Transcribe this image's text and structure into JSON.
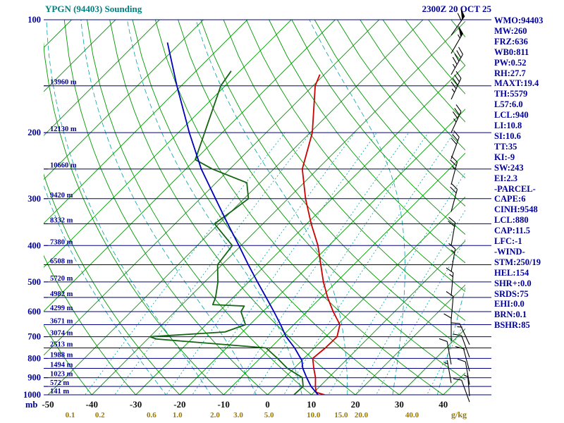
{
  "header": {
    "title": "YPGN (94403) Sounding",
    "datetime": "2300Z 20 OCT 25"
  },
  "stats": {
    "lines": [
      "WMO:94403",
      "MW:260",
      "FRZ:636",
      "WB0:811",
      "PW:0.52",
      "RH:27.7",
      "MAXT:19.4",
      "TH:5579",
      "L57:6.0",
      "LCL:940",
      "LI:10.8",
      "SI:10.6",
      "TT:35",
      "KI:-9",
      "SW:243",
      "EI:2.3",
      "-PARCEL-",
      "CAPE:6",
      "CINH:9548",
      "LCL:880",
      "CAP:11.5",
      "LFC:-1",
      "-WIND-",
      "STM:250/19",
      "HEL:154",
      "SHR+:0.0",
      "SRDS:75",
      "EHI:0.0",
      "BRN:0.1",
      "BSHR:85"
    ]
  },
  "chart_data": {
    "type": "line",
    "subtype": "skew-t-log-p-sounding",
    "title": "YPGN (94403) Sounding",
    "datetime": "2300Z 20 OCT 25",
    "pressure_unit": "mb",
    "mixing_unit": "g/kg",
    "pressure_ticks": [
      100,
      200,
      300,
      400,
      500,
      600,
      700,
      800,
      900,
      1000
    ],
    "temp_ticks": [
      -50,
      -40,
      -30,
      -20,
      -10,
      0,
      10,
      20,
      30,
      40
    ],
    "height_labels": [
      {
        "p": 150,
        "label": "13960 m"
      },
      {
        "p": 200,
        "label": "12130 m"
      },
      {
        "p": 250,
        "label": "10660 m"
      },
      {
        "p": 300,
        "label": "9420 m"
      },
      {
        "p": 350,
        "label": "8332 m"
      },
      {
        "p": 400,
        "label": "7380 m"
      },
      {
        "p": 450,
        "label": "6508 m"
      },
      {
        "p": 500,
        "label": "5720 m"
      },
      {
        "p": 550,
        "label": "4982 m"
      },
      {
        "p": 600,
        "label": "4299 m"
      },
      {
        "p": 650,
        "label": "3671 m"
      },
      {
        "p": 700,
        "label": "3074 m"
      },
      {
        "p": 750,
        "label": "2513 m"
      },
      {
        "p": 800,
        "label": "1988 m"
      },
      {
        "p": 850,
        "label": "1494 m"
      },
      {
        "p": 900,
        "label": "1023 m"
      },
      {
        "p": 950,
        "label": "572 m"
      },
      {
        "p": 1000,
        "label": "141 m"
      }
    ],
    "mixing_ratios": [
      {
        "w": 0.1,
        "label": "0.1"
      },
      {
        "w": 0.2,
        "label": "0.2"
      },
      {
        "w": 0.6,
        "label": "0.6"
      },
      {
        "w": 1,
        "label": "1.0"
      },
      {
        "w": 2,
        "label": "2.0"
      },
      {
        "w": 3,
        "label": "3.0"
      },
      {
        "w": 5,
        "label": "5.0"
      },
      {
        "w": 10,
        "label": "10.0"
      },
      {
        "w": 15,
        "label": "15.0"
      },
      {
        "w": 20,
        "label": "20.0"
      },
      {
        "w": 40,
        "label": "40.0"
      }
    ],
    "series": [
      {
        "name": "temperature",
        "color": "#cc0000",
        "points": [
          [
            1000,
            13
          ],
          [
            985,
            10.5
          ],
          [
            950,
            9
          ],
          [
            900,
            7
          ],
          [
            850,
            4.5
          ],
          [
            800,
            2
          ],
          [
            750,
            2.5
          ],
          [
            700,
            2.6
          ],
          [
            650,
            0.5
          ],
          [
            600,
            -4
          ],
          [
            550,
            -8.5
          ],
          [
            500,
            -13
          ],
          [
            450,
            -17.5
          ],
          [
            400,
            -22.5
          ],
          [
            350,
            -29
          ],
          [
            300,
            -36
          ],
          [
            250,
            -43.5
          ],
          [
            200,
            -49.5
          ],
          [
            150,
            -59.5
          ],
          [
            140,
            -61
          ]
        ]
      },
      {
        "name": "dewpoint",
        "color": "#146414",
        "points": [
          [
            1000,
            6
          ],
          [
            950,
            6.2
          ],
          [
            900,
            4
          ],
          [
            850,
            -1.5
          ],
          [
            800,
            -6
          ],
          [
            750,
            -11
          ],
          [
            710,
            -38
          ],
          [
            700,
            -40
          ],
          [
            680,
            -24
          ],
          [
            650,
            -21
          ],
          [
            600,
            -25
          ],
          [
            580,
            -25.5
          ],
          [
            575,
            -33
          ],
          [
            550,
            -34
          ],
          [
            500,
            -37
          ],
          [
            450,
            -41
          ],
          [
            400,
            -42
          ],
          [
            350,
            -51
          ],
          [
            325,
            -50
          ],
          [
            300,
            -49
          ],
          [
            272,
            -53
          ],
          [
            250,
            -64
          ],
          [
            236,
            -70
          ],
          [
            200,
            -74
          ],
          [
            150,
            -81
          ],
          [
            137,
            -82
          ]
        ]
      },
      {
        "name": "wetbulb",
        "color": "#0000bb",
        "points": [
          [
            1000,
            11.5
          ],
          [
            950,
            8
          ],
          [
            900,
            5
          ],
          [
            850,
            2
          ],
          [
            810,
            0
          ],
          [
            750,
            -4.5
          ],
          [
            700,
            -9
          ],
          [
            650,
            -13
          ],
          [
            600,
            -17.5
          ],
          [
            550,
            -22.5
          ],
          [
            500,
            -28
          ],
          [
            450,
            -34
          ],
          [
            400,
            -40.5
          ],
          [
            350,
            -48
          ],
          [
            300,
            -56.5
          ],
          [
            250,
            -66.5
          ],
          [
            200,
            -77.5
          ],
          [
            150,
            -91
          ],
          [
            115,
            -103
          ]
        ]
      }
    ],
    "winds": [
      {
        "p": 110,
        "spd": 60,
        "dir": 35,
        "col": 0
      },
      {
        "p": 123,
        "spd": 55,
        "dir": 30,
        "col": 0
      },
      {
        "p": 140,
        "spd": 45,
        "dir": 30,
        "col": 0
      },
      {
        "p": 163,
        "spd": 45,
        "dir": 25,
        "col": 0
      },
      {
        "p": 200,
        "spd": 35,
        "dir": 25,
        "col": 0
      },
      {
        "p": 235,
        "spd": 30,
        "dir": 20,
        "col": 0
      },
      {
        "p": 275,
        "spd": 25,
        "dir": 15,
        "col": 0
      },
      {
        "p": 325,
        "spd": 20,
        "dir": 15,
        "col": 0
      },
      {
        "p": 400,
        "spd": 20,
        "dir": 10,
        "col": 0
      },
      {
        "p": 470,
        "spd": 15,
        "dir": 10,
        "col": 0
      },
      {
        "p": 545,
        "spd": 15,
        "dir": 5,
        "col": 0
      },
      {
        "p": 630,
        "spd": 10,
        "dir": 5,
        "col": 0
      },
      {
        "p": 720,
        "spd": 10,
        "dir": 0,
        "col": 0
      },
      {
        "p": 830,
        "spd": 10,
        "dir": 350,
        "col": 0
      },
      {
        "p": 930,
        "spd": 5,
        "dir": 350,
        "col": 0
      },
      {
        "p": 735,
        "spd": 15,
        "dir": 335,
        "col": 1
      },
      {
        "p": 795,
        "spd": 10,
        "dir": 340,
        "col": 1
      },
      {
        "p": 865,
        "spd": 10,
        "dir": 345,
        "col": 1
      },
      {
        "p": 940,
        "spd": 10,
        "dir": 350,
        "col": 1
      },
      {
        "p": 1008,
        "spd": 5,
        "dir": 355,
        "col": 1
      },
      {
        "p": 1045,
        "spd": 10,
        "dir": 340,
        "col": 1
      }
    ],
    "grid": {
      "isotherm_min": -140,
      "isotherm_max": 40,
      "isotherm_step": 10,
      "dry_adiabat_min": -40,
      "dry_adiabat_max": 170,
      "dry_adiabat_step": 10,
      "moist_adiabat_starts": [
        -20,
        -10,
        0,
        10,
        20,
        30,
        40
      ],
      "pressure_line_step": 50,
      "pressure_range": [
        100,
        1000
      ],
      "skew_deg": 45
    },
    "colors": {
      "pressure_line": "#000080",
      "isotherm": "#009900",
      "adiabat": "#009900",
      "mixing": "#00a3a3",
      "temp_label": "#111111",
      "mixing_label": "#997700",
      "axis_label": "#000099",
      "barb": "#000000"
    }
  }
}
